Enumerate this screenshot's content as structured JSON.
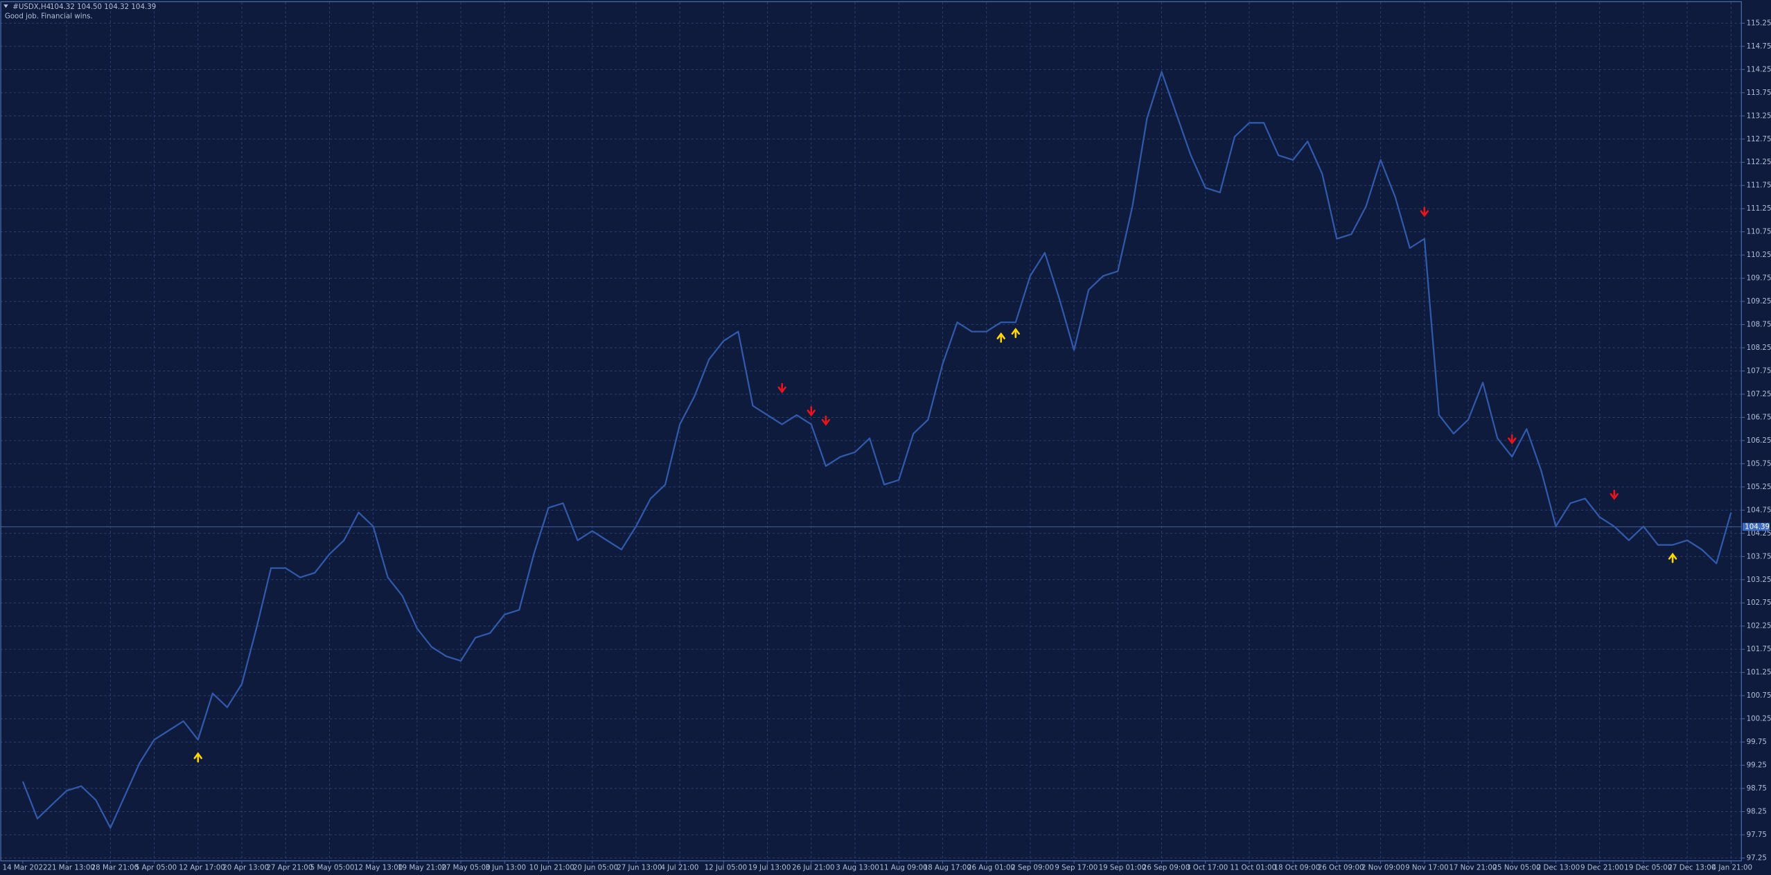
{
  "header": {
    "symbol": "#USDX,H4",
    "quote": "104.32 104.50 104.32 104.39",
    "comment": "Good job. Financial wins."
  },
  "chart_data": {
    "type": "line",
    "grid": true,
    "last_price": 104.39,
    "ylim": [
      97.2,
      115.7
    ],
    "yticks": [
      97.25,
      97.75,
      98.25,
      98.75,
      99.25,
      99.75,
      100.25,
      100.75,
      101.25,
      101.75,
      102.25,
      102.75,
      103.25,
      103.75,
      104.25,
      104.75,
      105.25,
      105.75,
      106.25,
      106.75,
      107.25,
      107.75,
      108.25,
      108.75,
      109.25,
      109.75,
      110.25,
      110.75,
      111.25,
      111.75,
      112.25,
      112.75,
      113.25,
      113.75,
      114.25,
      114.75,
      115.25
    ],
    "categories": [
      "14 Mar 2022",
      null,
      null,
      "21 Mar 13:00",
      null,
      null,
      "28 Mar 21:00",
      null,
      null,
      "5 Apr 05:00",
      null,
      null,
      "12 Apr 17:00",
      null,
      null,
      "20 Apr 13:00",
      null,
      null,
      "27 Apr 21:00",
      null,
      null,
      "5 May 05:00",
      null,
      null,
      "12 May 13:00",
      null,
      null,
      "19 May 21:00",
      null,
      null,
      "27 May 05:00",
      null,
      null,
      "3 Jun 13:00",
      null,
      null,
      "10 Jun 21:00",
      null,
      null,
      "20 Jun 05:00",
      null,
      null,
      "27 Jun 13:00",
      null,
      null,
      "4 Jul 21:00",
      null,
      null,
      "12 Jul 05:00",
      null,
      null,
      "19 Jul 13:00",
      null,
      null,
      "26 Jul 21:00",
      null,
      null,
      "3 Aug 13:00",
      null,
      null,
      "11 Aug 09:00",
      null,
      null,
      "18 Aug 17:00",
      null,
      null,
      "26 Aug 01:00",
      null,
      null,
      "2 Sep 09:00",
      null,
      null,
      "9 Sep 17:00",
      null,
      null,
      "19 Sep 01:00",
      null,
      null,
      "26 Sep 09:00",
      null,
      null,
      "3 Oct 17:00",
      null,
      null,
      "11 Oct 01:00",
      null,
      null,
      "18 Oct 09:00",
      null,
      null,
      "26 Oct 09:00",
      null,
      null,
      "2 Nov 09:00",
      null,
      null,
      "9 Nov 17:00",
      null,
      null,
      "17 Nov 21:00",
      null,
      null,
      "25 Nov 05:00",
      null,
      null,
      "2 Dec 13:00",
      null,
      null,
      "9 Dec 21:00",
      null,
      null,
      "19 Dec 05:00",
      null,
      null,
      "27 Dec 13:00",
      null,
      null,
      "4 Jan 21:00"
    ],
    "series": [
      {
        "color": "#3159aa",
        "values": [
          98.9,
          98.1,
          98.4,
          98.7,
          98.8,
          98.5,
          97.9,
          98.6,
          99.3,
          99.8,
          100.0,
          100.2,
          99.8,
          100.8,
          100.5,
          101.0,
          102.2,
          103.5,
          103.5,
          103.3,
          103.4,
          103.8,
          104.1,
          104.7,
          104.4,
          103.3,
          102.9,
          102.2,
          101.8,
          101.6,
          101.5,
          102.0,
          102.1,
          102.5,
          102.6,
          103.8,
          104.8,
          104.9,
          104.1,
          104.3,
          104.1,
          103.9,
          104.4,
          105.0,
          105.3,
          106.6,
          107.2,
          108.0,
          108.4,
          108.6,
          107.0,
          106.8,
          106.6,
          106.8,
          106.6,
          105.7,
          105.9,
          106.0,
          106.3,
          105.3,
          105.4,
          106.4,
          106.7,
          107.9,
          108.8,
          108.6,
          108.6,
          108.8,
          108.8,
          109.8,
          110.3,
          109.3,
          108.2,
          109.5,
          109.8,
          109.9,
          111.3,
          113.2,
          114.2,
          113.3,
          112.4,
          111.7,
          111.6,
          112.8,
          113.1,
          113.1,
          112.4,
          112.3,
          112.7,
          112.0,
          110.6,
          110.7,
          111.3,
          112.3,
          111.5,
          110.4,
          110.6,
          106.8,
          106.4,
          106.7,
          107.5,
          106.3,
          105.9,
          106.5,
          105.6,
          104.4,
          104.9,
          105.0,
          104.6,
          104.4,
          104.1,
          104.4,
          104.0,
          104.0,
          104.1,
          103.9,
          103.6,
          104.7
        ]
      }
    ],
    "signals": {
      "buy": {
        "color": "#ffd400",
        "values": [
          null,
          null,
          null,
          null,
          null,
          null,
          null,
          null,
          null,
          null,
          null,
          null,
          99.5,
          null,
          null,
          null,
          null,
          null,
          null,
          null,
          null,
          null,
          null,
          null,
          null,
          null,
          null,
          null,
          null,
          null,
          null,
          null,
          null,
          null,
          null,
          null,
          null,
          null,
          null,
          null,
          null,
          null,
          null,
          null,
          null,
          null,
          null,
          null,
          null,
          null,
          null,
          null,
          null,
          null,
          null,
          null,
          null,
          null,
          null,
          null,
          null,
          null,
          null,
          null,
          null,
          null,
          null,
          108.55,
          108.65,
          null,
          null,
          null,
          null,
          null,
          null,
          null,
          null,
          null,
          null,
          null,
          null,
          null,
          null,
          null,
          null,
          null,
          null,
          null,
          null,
          null,
          null,
          null,
          null,
          null,
          null,
          null,
          null,
          null,
          null,
          null,
          null,
          null,
          null,
          null,
          null,
          null,
          null,
          null,
          null,
          null,
          null,
          null,
          null,
          103.8,
          null,
          null,
          null,
          null
        ]
      },
      "sell": {
        "color": "#e8141c",
        "values": [
          null,
          null,
          null,
          null,
          null,
          null,
          null,
          null,
          null,
          null,
          null,
          null,
          null,
          null,
          null,
          null,
          null,
          null,
          null,
          null,
          null,
          null,
          null,
          null,
          null,
          null,
          null,
          null,
          null,
          null,
          null,
          null,
          null,
          null,
          null,
          null,
          null,
          null,
          null,
          null,
          null,
          null,
          null,
          null,
          null,
          null,
          null,
          null,
          null,
          null,
          null,
          null,
          107.3,
          null,
          106.8,
          106.6,
          null,
          null,
          null,
          null,
          null,
          null,
          null,
          null,
          null,
          null,
          null,
          null,
          null,
          null,
          null,
          null,
          null,
          null,
          null,
          null,
          null,
          null,
          null,
          null,
          null,
          null,
          null,
          null,
          null,
          null,
          null,
          null,
          null,
          null,
          null,
          null,
          null,
          null,
          null,
          null,
          111.1,
          null,
          null,
          null,
          null,
          null,
          106.2,
          null,
          null,
          null,
          null,
          null,
          null,
          105.0,
          null,
          null,
          null,
          null,
          null,
          null,
          null,
          null
        ]
      }
    }
  }
}
